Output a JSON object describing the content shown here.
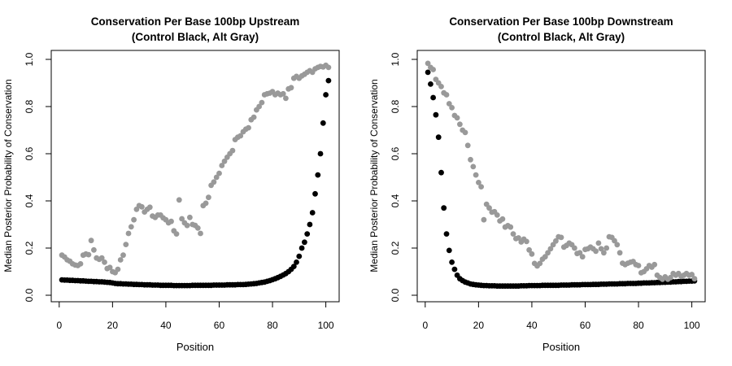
{
  "page": {
    "background": "#ffffff",
    "text_color": "#000000"
  },
  "chart_data": [
    {
      "type": "scatter",
      "title": "Conservation Per Base 100bp Upstream",
      "subtitle": "(Control Black, Alt Gray)",
      "xlabel": "Position",
      "ylabel": "Median Posterior Probability of Conservation",
      "xlim": [
        -3,
        105
      ],
      "ylim": [
        -0.04,
        1.04
      ],
      "x_tick_values": [
        0,
        20,
        40,
        60,
        80,
        100
      ],
      "x_tick_labels": [
        "0",
        "20",
        "40",
        "60",
        "80",
        "100"
      ],
      "y_tick_values": [
        0.0,
        0.2,
        0.4,
        0.6,
        0.8,
        1.0
      ],
      "y_tick_labels": [
        "0.0",
        "0.2",
        "0.4",
        "0.6",
        "0.8",
        "1.0"
      ],
      "grid": false,
      "legend_position": "none",
      "point_style": "filled-circle",
      "series": [
        {
          "name": "Control",
          "color": "#000000",
          "x_start": 1,
          "values": [
            0.065,
            0.064,
            0.064,
            0.063,
            0.063,
            0.062,
            0.062,
            0.061,
            0.061,
            0.06,
            0.059,
            0.059,
            0.058,
            0.058,
            0.057,
            0.057,
            0.056,
            0.055,
            0.054,
            0.052,
            0.05,
            0.049,
            0.049,
            0.048,
            0.048,
            0.047,
            0.047,
            0.046,
            0.046,
            0.045,
            0.045,
            0.044,
            0.044,
            0.044,
            0.043,
            0.043,
            0.043,
            0.042,
            0.042,
            0.042,
            0.042,
            0.042,
            0.041,
            0.041,
            0.041,
            0.041,
            0.041,
            0.041,
            0.041,
            0.042,
            0.042,
            0.042,
            0.042,
            0.042,
            0.042,
            0.042,
            0.042,
            0.043,
            0.043,
            0.043,
            0.043,
            0.043,
            0.044,
            0.044,
            0.044,
            0.044,
            0.045,
            0.045,
            0.045,
            0.046,
            0.047,
            0.048,
            0.049,
            0.05,
            0.052,
            0.054,
            0.056,
            0.059,
            0.062,
            0.066,
            0.07,
            0.075,
            0.08,
            0.086,
            0.092,
            0.1,
            0.11,
            0.122,
            0.14,
            0.165,
            0.2,
            0.225,
            0.26,
            0.3,
            0.35,
            0.43,
            0.51,
            0.6,
            0.73,
            0.85,
            0.91
          ]
        },
        {
          "name": "Alt",
          "color": "#999999",
          "x_start": 1,
          "values": [
            0.17,
            0.162,
            0.15,
            0.144,
            0.133,
            0.128,
            0.126,
            0.133,
            0.17,
            0.175,
            0.172,
            0.232,
            0.192,
            0.158,
            0.152,
            0.158,
            0.14,
            0.113,
            0.118,
            0.1,
            0.096,
            0.11,
            0.15,
            0.17,
            0.215,
            0.262,
            0.29,
            0.32,
            0.364,
            0.38,
            0.375,
            0.353,
            0.364,
            0.373,
            0.336,
            0.33,
            0.34,
            0.34,
            0.328,
            0.32,
            0.307,
            0.313,
            0.273,
            0.26,
            0.404,
            0.324,
            0.307,
            0.296,
            0.33,
            0.3,
            0.296,
            0.285,
            0.262,
            0.38,
            0.39,
            0.415,
            0.466,
            0.48,
            0.5,
            0.517,
            0.55,
            0.568,
            0.585,
            0.6,
            0.613,
            0.66,
            0.67,
            0.676,
            0.693,
            0.704,
            0.71,
            0.744,
            0.755,
            0.786,
            0.8,
            0.817,
            0.85,
            0.854,
            0.857,
            0.863,
            0.85,
            0.857,
            0.85,
            0.854,
            0.835,
            0.875,
            0.88,
            0.92,
            0.928,
            0.92,
            0.93,
            0.937,
            0.945,
            0.952,
            0.945,
            0.96,
            0.966,
            0.97,
            0.968,
            0.975,
            0.966
          ]
        }
      ]
    },
    {
      "type": "scatter",
      "title": "Conservation Per Base 100bp Downstream",
      "subtitle": "(Control Black, Alt Gray)",
      "xlabel": "Position",
      "ylabel": "Median Posterior Probability of Conservation",
      "xlim": [
        -3,
        105
      ],
      "ylim": [
        -0.04,
        1.04
      ],
      "x_tick_values": [
        0,
        20,
        40,
        60,
        80,
        100
      ],
      "x_tick_labels": [
        "0",
        "20",
        "40",
        "60",
        "80",
        "100"
      ],
      "y_tick_values": [
        0.0,
        0.2,
        0.4,
        0.6,
        0.8,
        1.0
      ],
      "y_tick_labels": [
        "0.0",
        "0.2",
        "0.4",
        "0.6",
        "0.8",
        "1.0"
      ],
      "grid": false,
      "legend_position": "none",
      "point_style": "filled-circle",
      "series": [
        {
          "name": "Control",
          "color": "#000000",
          "x_start": 1,
          "values": [
            0.945,
            0.895,
            0.838,
            0.765,
            0.67,
            0.52,
            0.37,
            0.26,
            0.19,
            0.14,
            0.11,
            0.085,
            0.07,
            0.062,
            0.056,
            0.052,
            0.048,
            0.046,
            0.044,
            0.043,
            0.042,
            0.041,
            0.041,
            0.04,
            0.04,
            0.04,
            0.039,
            0.039,
            0.039,
            0.039,
            0.039,
            0.039,
            0.039,
            0.039,
            0.039,
            0.04,
            0.04,
            0.04,
            0.041,
            0.041,
            0.041,
            0.041,
            0.041,
            0.042,
            0.042,
            0.042,
            0.042,
            0.042,
            0.042,
            0.042,
            0.043,
            0.043,
            0.043,
            0.043,
            0.044,
            0.044,
            0.044,
            0.044,
            0.045,
            0.045,
            0.045,
            0.045,
            0.046,
            0.046,
            0.046,
            0.047,
            0.047,
            0.047,
            0.048,
            0.048,
            0.048,
            0.048,
            0.049,
            0.049,
            0.049,
            0.05,
            0.05,
            0.05,
            0.05,
            0.051,
            0.051,
            0.052,
            0.052,
            0.052,
            0.053,
            0.053,
            0.054,
            0.054,
            0.055,
            0.055,
            0.056,
            0.056,
            0.057,
            0.057,
            0.058,
            0.058,
            0.059,
            0.059,
            0.06,
            0.06,
            0.061
          ]
        },
        {
          "name": "Alt",
          "color": "#999999",
          "x_start": 1,
          "values": [
            0.983,
            0.966,
            0.957,
            0.915,
            0.9,
            0.885,
            0.858,
            0.85,
            0.812,
            0.795,
            0.762,
            0.752,
            0.725,
            0.7,
            0.69,
            0.635,
            0.575,
            0.545,
            0.51,
            0.478,
            0.46,
            0.32,
            0.386,
            0.37,
            0.352,
            0.354,
            0.34,
            0.315,
            0.323,
            0.289,
            0.295,
            0.289,
            0.26,
            0.24,
            0.243,
            0.226,
            0.238,
            0.228,
            0.192,
            0.175,
            0.135,
            0.124,
            0.135,
            0.153,
            0.163,
            0.18,
            0.197,
            0.214,
            0.23,
            0.248,
            0.245,
            0.204,
            0.211,
            0.221,
            0.214,
            0.2,
            0.177,
            0.18,
            0.163,
            0.194,
            0.197,
            0.204,
            0.197,
            0.187,
            0.221,
            0.197,
            0.18,
            0.2,
            0.248,
            0.245,
            0.231,
            0.214,
            0.18,
            0.136,
            0.13,
            0.136,
            0.14,
            0.143,
            0.13,
            0.126,
            0.095,
            0.1,
            0.112,
            0.126,
            0.119,
            0.13,
            0.085,
            0.075,
            0.068,
            0.078,
            0.068,
            0.075,
            0.092,
            0.085,
            0.092,
            0.08,
            0.085,
            0.092,
            0.085,
            0.088,
            0.07
          ]
        }
      ]
    }
  ]
}
